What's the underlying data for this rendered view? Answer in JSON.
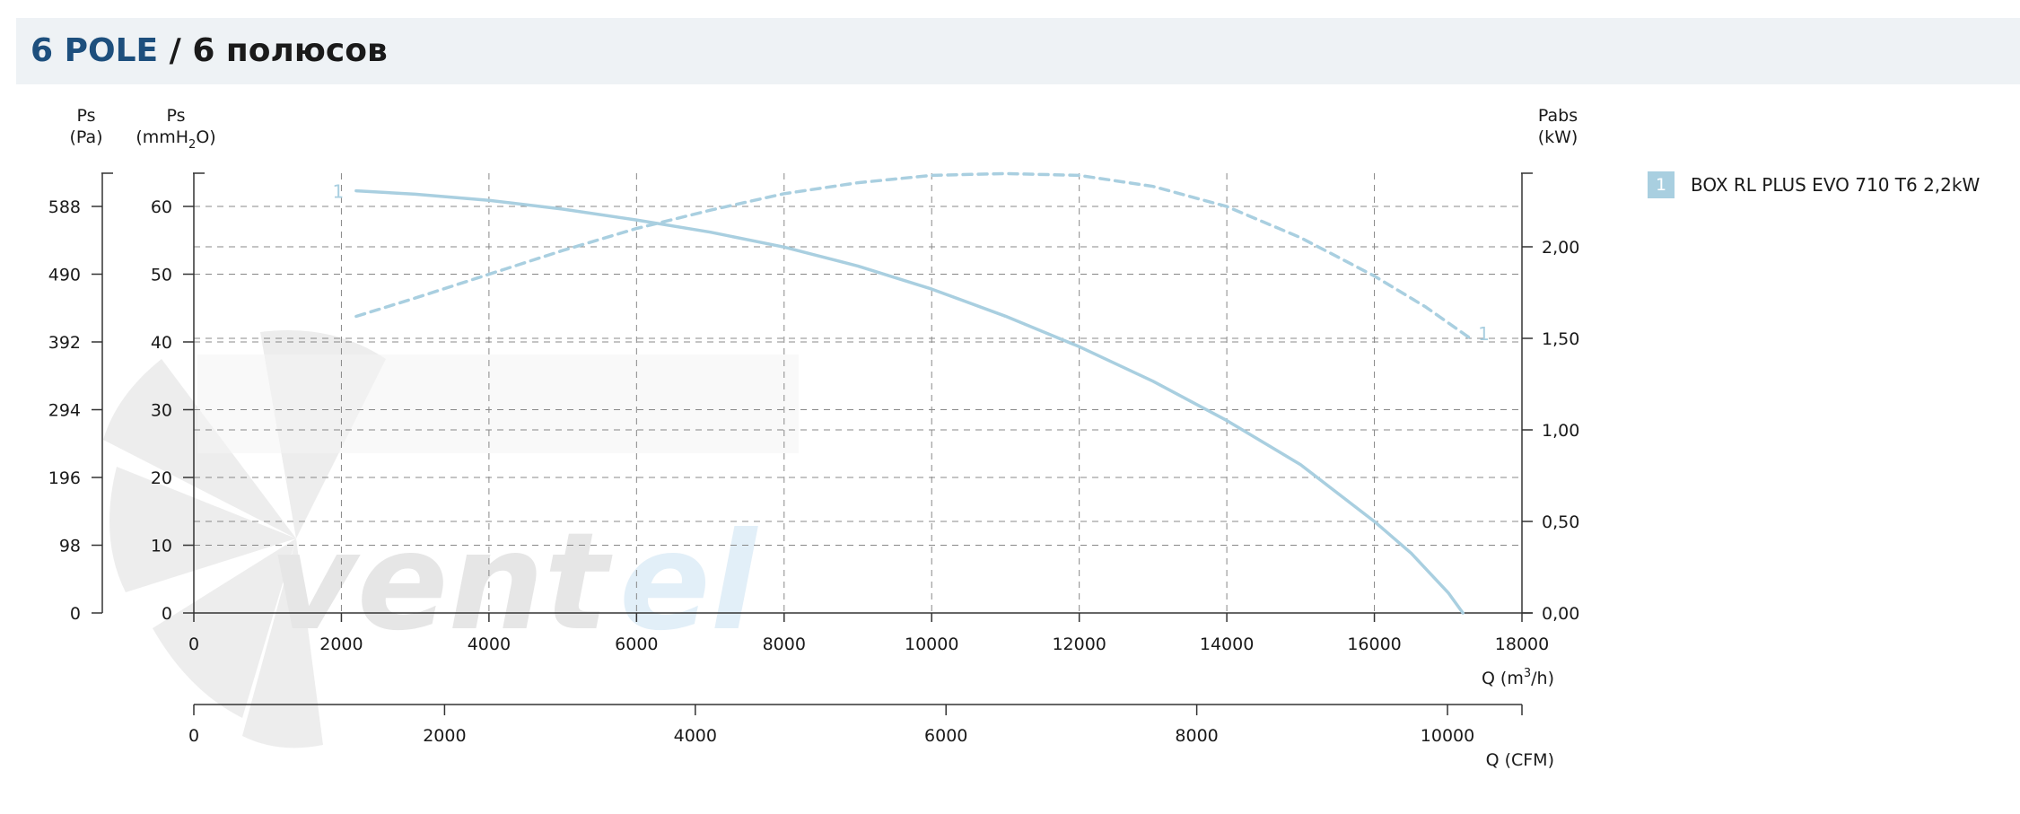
{
  "header": {
    "title_accent": "6 POLE",
    "title_rest": " / 6 полюсов"
  },
  "axes": {
    "left_pa_label_line1": "Ps",
    "left_pa_label_line2": "(Pa)",
    "left_mm_label_line1": "Ps",
    "left_mm_label_line2_a": "(mmH",
    "left_mm_label_sub": "2",
    "left_mm_label_line2_b": "O)",
    "right_label_line1": "Pabs",
    "right_label_line2": "(kW)",
    "x_m3h_label_a": "Q (m",
    "x_m3h_label_sup": "3",
    "x_m3h_label_b": "/h)",
    "x_cfm_label": "Q (CFM)"
  },
  "legend": {
    "badge": "1",
    "label": "BOX RL PLUS EVO 710 T6 2,2kW"
  },
  "colors": {
    "curve": "#a9cfe0",
    "header_accent": "#1d4f7d",
    "grid": "#888888"
  },
  "chart_data": {
    "type": "line",
    "x_axis": {
      "label": "Q (m3/h)",
      "range": [
        0,
        18000
      ],
      "ticks": [
        0,
        2000,
        4000,
        6000,
        8000,
        10000,
        12000,
        14000,
        16000,
        18000
      ]
    },
    "x_axis_secondary": {
      "label": "Q (CFM)",
      "range": [
        0,
        10594
      ],
      "ticks": [
        0,
        2000,
        4000,
        6000,
        8000,
        10000
      ]
    },
    "y_axis_left": {
      "label": "Ps (mmH2O)",
      "range": [
        0,
        65
      ],
      "ticks": [
        0,
        10,
        20,
        30,
        40,
        50,
        60
      ]
    },
    "y_axis_left_pa": {
      "label": "Ps (Pa)",
      "ticks": [
        "0",
        "98",
        "196",
        "294",
        "392",
        "490",
        "588"
      ]
    },
    "y_axis_right": {
      "label": "Pabs (kW)",
      "range": [
        0,
        2.4
      ],
      "ticks": [
        "0,00",
        "0,50",
        "1,00",
        "1,50",
        "2,00"
      ]
    },
    "grid": true,
    "legend_position": "right",
    "series": [
      {
        "name": "BOX RL PLUS EVO 710 T6 2,2kW",
        "curve_label": "1",
        "quantity": "Ps",
        "axis": "left",
        "style": "solid",
        "points": [
          [
            2200,
            62.3
          ],
          [
            3000,
            61.8
          ],
          [
            4000,
            60.9
          ],
          [
            5000,
            59.6
          ],
          [
            6000,
            58.0
          ],
          [
            7000,
            56.2
          ],
          [
            8000,
            54.0
          ],
          [
            9000,
            51.2
          ],
          [
            10000,
            47.8
          ],
          [
            11000,
            43.8
          ],
          [
            12000,
            39.3
          ],
          [
            13000,
            34.2
          ],
          [
            14000,
            28.4
          ],
          [
            15000,
            21.9
          ],
          [
            16000,
            13.5
          ],
          [
            16500,
            8.8
          ],
          [
            17000,
            3.0
          ],
          [
            17200,
            0
          ]
        ]
      },
      {
        "name": "BOX RL PLUS EVO 710 T6 2,2kW",
        "curve_label": "1",
        "quantity": "Pabs",
        "axis": "right",
        "style": "dashed",
        "points": [
          [
            2200,
            1.62
          ],
          [
            3000,
            1.72
          ],
          [
            4000,
            1.85
          ],
          [
            5000,
            1.98
          ],
          [
            6000,
            2.1
          ],
          [
            7000,
            2.2
          ],
          [
            8000,
            2.29
          ],
          [
            9000,
            2.35
          ],
          [
            10000,
            2.39
          ],
          [
            11000,
            2.4
          ],
          [
            12000,
            2.39
          ],
          [
            13000,
            2.33
          ],
          [
            14000,
            2.22
          ],
          [
            15000,
            2.05
          ],
          [
            16000,
            1.84
          ],
          [
            16700,
            1.67
          ],
          [
            17300,
            1.5
          ]
        ]
      }
    ]
  }
}
